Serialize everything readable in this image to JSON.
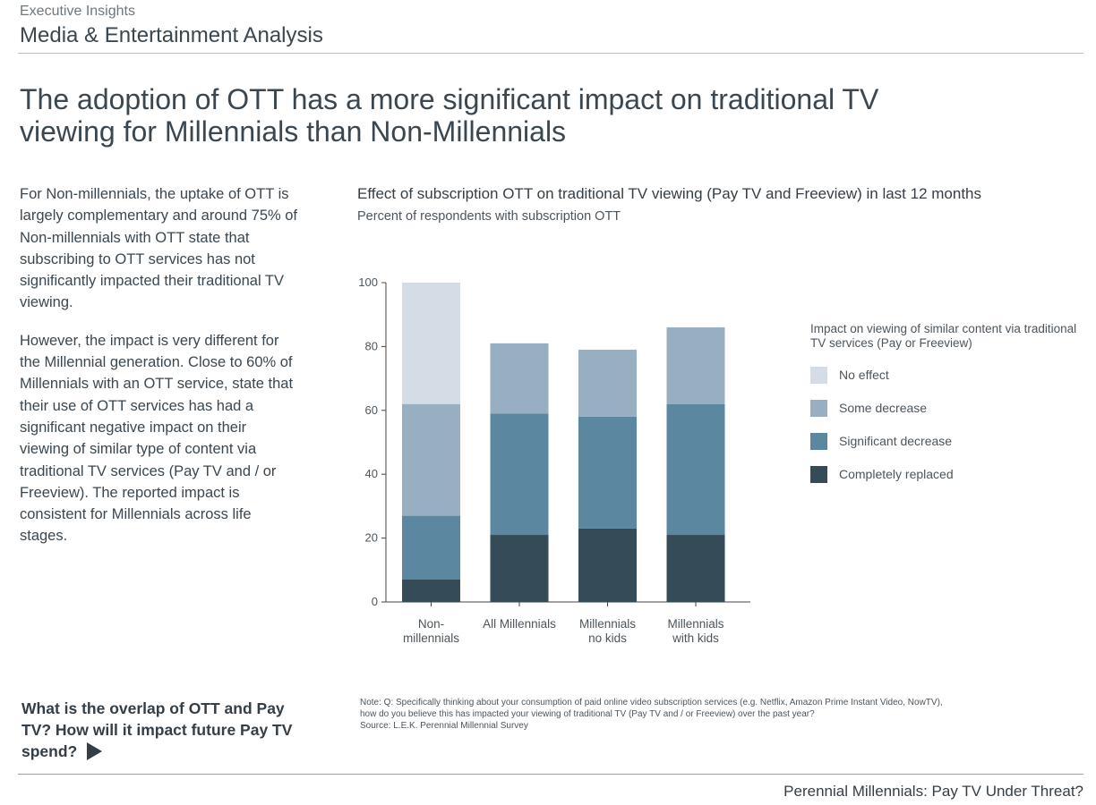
{
  "header": {
    "kicker": "Executive Insights",
    "section": "Media & Entertainment Analysis"
  },
  "headline": "The adoption of OTT has a more significant impact on traditional TV viewing for Millennials than Non-Millennials",
  "body": {
    "paragraphs": [
      "For Non-millennials, the uptake of OTT is largely complementary and around 75% of Non-millennials with OTT state that subscribing to OTT services has not significantly impacted their traditional TV viewing.",
      "However, the impact is very different for the Millennial generation. Close to 60% of Millennials with an OTT service, state that their use of OTT services has had a significant negative impact on their viewing of similar type of content via traditional TV services (Pay TV and / or Freeview). The reported impact is consistent for Millennials across life stages."
    ]
  },
  "chart_data": {
    "type": "bar",
    "stacked": true,
    "title": "Effect of subscription OTT on traditional TV viewing (Pay TV and Freeview) in last 12 months",
    "subtitle": "Percent of respondents with subscription OTT",
    "xlabel": "",
    "ylabel": "",
    "ylim": [
      0,
      100
    ],
    "yticks": [
      0,
      20,
      40,
      60,
      80,
      100
    ],
    "grid": false,
    "legend_position": "right",
    "legend_title": "Impact on viewing of similar content via traditional TV services (Pay or Freeview)",
    "categories": [
      [
        "Non-",
        "millennials"
      ],
      [
        "All Millennials"
      ],
      [
        "Millennials",
        "no kids"
      ],
      [
        "Millennials",
        "with kids"
      ]
    ],
    "series": [
      {
        "name": "Completely replaced",
        "color": "#354b58",
        "values": [
          7,
          21,
          23,
          21
        ]
      },
      {
        "name": "Significant decrease",
        "color": "#5b87a1",
        "values": [
          20,
          38,
          35,
          41
        ]
      },
      {
        "name": "Some decrease",
        "color": "#98afc1",
        "values": [
          35,
          22,
          21,
          24
        ]
      },
      {
        "name": "No effect",
        "color": "#d4dde5",
        "values": [
          38,
          0,
          0,
          0
        ]
      }
    ],
    "legend_order": [
      "No effect",
      "Some decrease",
      "Significant decrease",
      "Completely replaced"
    ]
  },
  "cta": {
    "text": "What is the overlap of OTT and Pay TV? How will it impact future Pay TV spend?",
    "icon": "play-arrow-icon"
  },
  "notes": {
    "line1": "Note: Q: Specifically thinking about your consumption of paid online video subscription services (e.g. Netflix, Amazon Prime Instant Video, NowTV),",
    "line2": "how do you believe this has impacted your viewing of traditional TV (Pay TV and / or Freeview) over the past year?",
    "source": "Source: L.E.K. Perennial Millennial Survey"
  },
  "footer": {
    "title": "Perennial Millennials: Pay TV Under Threat?"
  },
  "colors": {
    "accent_rule": "#d9b98a",
    "text": "#3a4750"
  }
}
